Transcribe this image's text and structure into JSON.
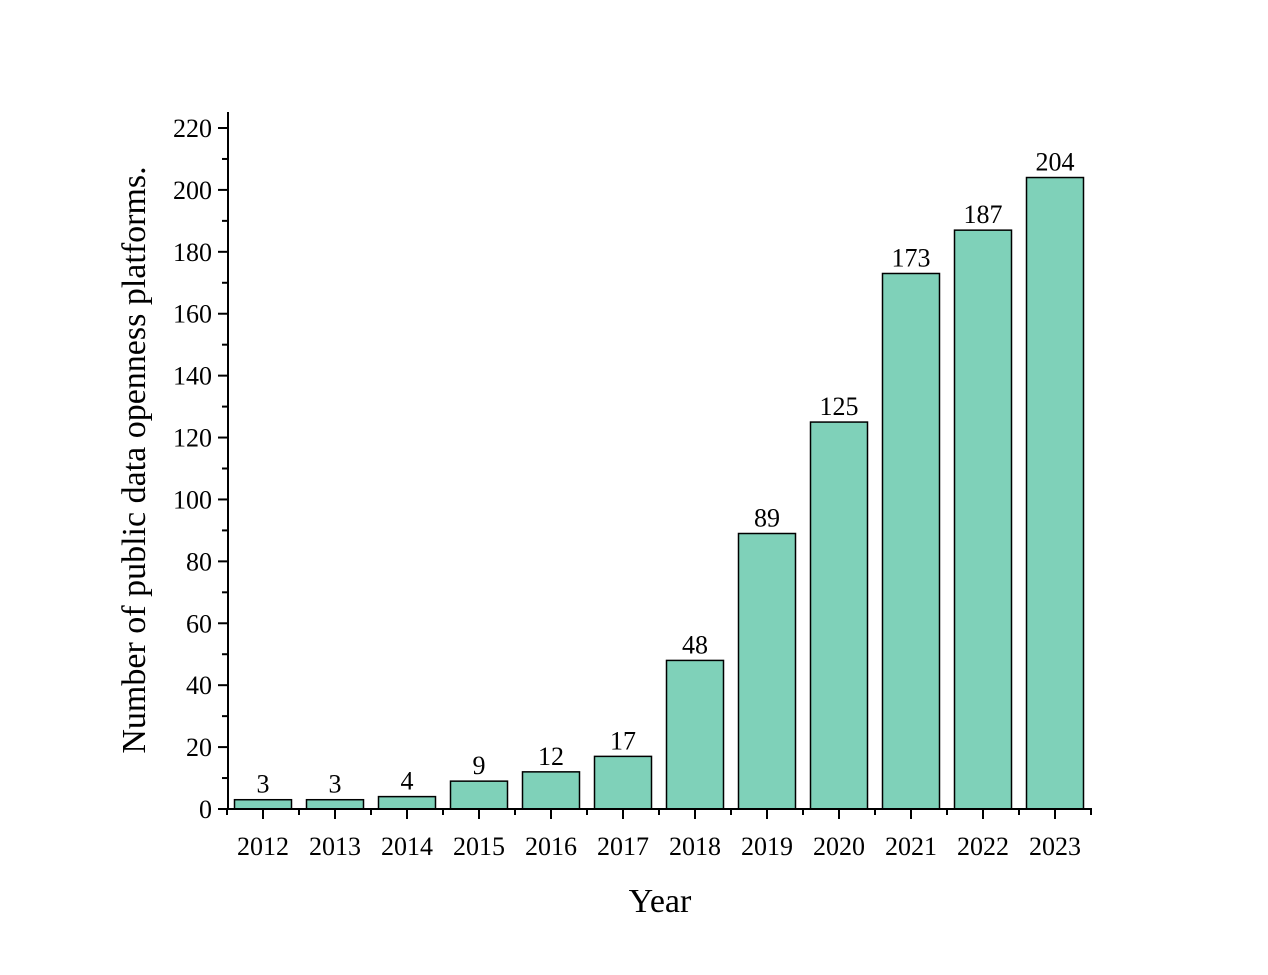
{
  "chart_data": {
    "type": "bar",
    "title": "",
    "xlabel": "Year",
    "ylabel": "Number of public data openness platforms.",
    "categories": [
      "2012",
      "2013",
      "2014",
      "2015",
      "2016",
      "2017",
      "2018",
      "2019",
      "2020",
      "2021",
      "2022",
      "2023"
    ],
    "values": [
      3,
      3,
      4,
      9,
      12,
      17,
      48,
      89,
      125,
      173,
      187,
      204
    ],
    "data_labels": [
      "3",
      "3",
      "4",
      "9",
      "12",
      "17",
      "48",
      "89",
      "125",
      "173",
      "187",
      "204"
    ],
    "ylim": [
      0,
      225
    ],
    "yticks": [
      0,
      20,
      40,
      60,
      80,
      100,
      120,
      140,
      160,
      180,
      200,
      220
    ],
    "ytick_labels": [
      "0",
      "20",
      "40",
      "60",
      "80",
      "100",
      "120",
      "140",
      "160",
      "180",
      "200",
      "220"
    ],
    "minor_tick_step": 10,
    "grid": false,
    "legend": "none",
    "bar_color": "#7fd1b9",
    "bar_edge_color": "#000000"
  }
}
